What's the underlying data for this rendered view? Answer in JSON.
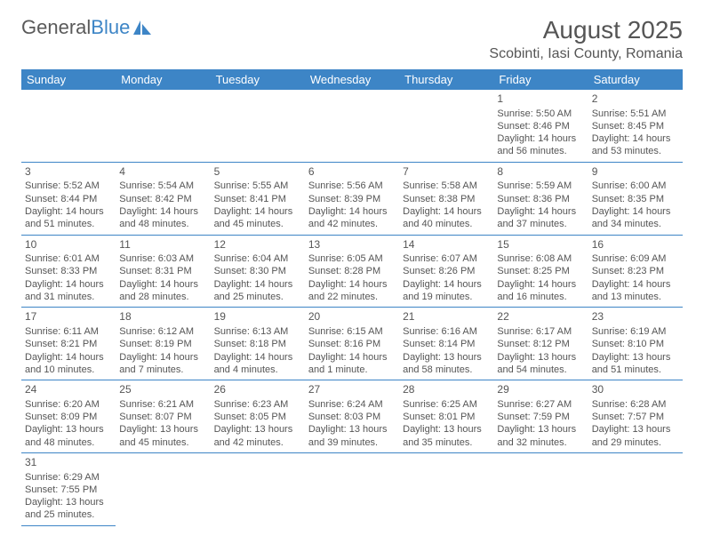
{
  "brand": {
    "part1": "General",
    "part2": "Blue"
  },
  "title": "August 2025",
  "location": "Scobinti, Iasi County, Romania",
  "colors": {
    "header_bg": "#3d85c6",
    "header_fg": "#ffffff",
    "border": "#3d85c6",
    "text": "#555555"
  },
  "dayNames": [
    "Sunday",
    "Monday",
    "Tuesday",
    "Wednesday",
    "Thursday",
    "Friday",
    "Saturday"
  ],
  "weeks": [
    [
      null,
      null,
      null,
      null,
      null,
      {
        "n": "1",
        "sr": "5:50 AM",
        "ss": "8:46 PM",
        "dl": "14 hours and 56 minutes."
      },
      {
        "n": "2",
        "sr": "5:51 AM",
        "ss": "8:45 PM",
        "dl": "14 hours and 53 minutes."
      }
    ],
    [
      {
        "n": "3",
        "sr": "5:52 AM",
        "ss": "8:44 PM",
        "dl": "14 hours and 51 minutes."
      },
      {
        "n": "4",
        "sr": "5:54 AM",
        "ss": "8:42 PM",
        "dl": "14 hours and 48 minutes."
      },
      {
        "n": "5",
        "sr": "5:55 AM",
        "ss": "8:41 PM",
        "dl": "14 hours and 45 minutes."
      },
      {
        "n": "6",
        "sr": "5:56 AM",
        "ss": "8:39 PM",
        "dl": "14 hours and 42 minutes."
      },
      {
        "n": "7",
        "sr": "5:58 AM",
        "ss": "8:38 PM",
        "dl": "14 hours and 40 minutes."
      },
      {
        "n": "8",
        "sr": "5:59 AM",
        "ss": "8:36 PM",
        "dl": "14 hours and 37 minutes."
      },
      {
        "n": "9",
        "sr": "6:00 AM",
        "ss": "8:35 PM",
        "dl": "14 hours and 34 minutes."
      }
    ],
    [
      {
        "n": "10",
        "sr": "6:01 AM",
        "ss": "8:33 PM",
        "dl": "14 hours and 31 minutes."
      },
      {
        "n": "11",
        "sr": "6:03 AM",
        "ss": "8:31 PM",
        "dl": "14 hours and 28 minutes."
      },
      {
        "n": "12",
        "sr": "6:04 AM",
        "ss": "8:30 PM",
        "dl": "14 hours and 25 minutes."
      },
      {
        "n": "13",
        "sr": "6:05 AM",
        "ss": "8:28 PM",
        "dl": "14 hours and 22 minutes."
      },
      {
        "n": "14",
        "sr": "6:07 AM",
        "ss": "8:26 PM",
        "dl": "14 hours and 19 minutes."
      },
      {
        "n": "15",
        "sr": "6:08 AM",
        "ss": "8:25 PM",
        "dl": "14 hours and 16 minutes."
      },
      {
        "n": "16",
        "sr": "6:09 AM",
        "ss": "8:23 PM",
        "dl": "14 hours and 13 minutes."
      }
    ],
    [
      {
        "n": "17",
        "sr": "6:11 AM",
        "ss": "8:21 PM",
        "dl": "14 hours and 10 minutes."
      },
      {
        "n": "18",
        "sr": "6:12 AM",
        "ss": "8:19 PM",
        "dl": "14 hours and 7 minutes."
      },
      {
        "n": "19",
        "sr": "6:13 AM",
        "ss": "8:18 PM",
        "dl": "14 hours and 4 minutes."
      },
      {
        "n": "20",
        "sr": "6:15 AM",
        "ss": "8:16 PM",
        "dl": "14 hours and 1 minute."
      },
      {
        "n": "21",
        "sr": "6:16 AM",
        "ss": "8:14 PM",
        "dl": "13 hours and 58 minutes."
      },
      {
        "n": "22",
        "sr": "6:17 AM",
        "ss": "8:12 PM",
        "dl": "13 hours and 54 minutes."
      },
      {
        "n": "23",
        "sr": "6:19 AM",
        "ss": "8:10 PM",
        "dl": "13 hours and 51 minutes."
      }
    ],
    [
      {
        "n": "24",
        "sr": "6:20 AM",
        "ss": "8:09 PM",
        "dl": "13 hours and 48 minutes."
      },
      {
        "n": "25",
        "sr": "6:21 AM",
        "ss": "8:07 PM",
        "dl": "13 hours and 45 minutes."
      },
      {
        "n": "26",
        "sr": "6:23 AM",
        "ss": "8:05 PM",
        "dl": "13 hours and 42 minutes."
      },
      {
        "n": "27",
        "sr": "6:24 AM",
        "ss": "8:03 PM",
        "dl": "13 hours and 39 minutes."
      },
      {
        "n": "28",
        "sr": "6:25 AM",
        "ss": "8:01 PM",
        "dl": "13 hours and 35 minutes."
      },
      {
        "n": "29",
        "sr": "6:27 AM",
        "ss": "7:59 PM",
        "dl": "13 hours and 32 minutes."
      },
      {
        "n": "30",
        "sr": "6:28 AM",
        "ss": "7:57 PM",
        "dl": "13 hours and 29 minutes."
      }
    ],
    [
      {
        "n": "31",
        "sr": "6:29 AM",
        "ss": "7:55 PM",
        "dl": "13 hours and 25 minutes."
      },
      null,
      null,
      null,
      null,
      null,
      null
    ]
  ],
  "labels": {
    "sunrise": "Sunrise:",
    "sunset": "Sunset:",
    "daylight": "Daylight:"
  }
}
